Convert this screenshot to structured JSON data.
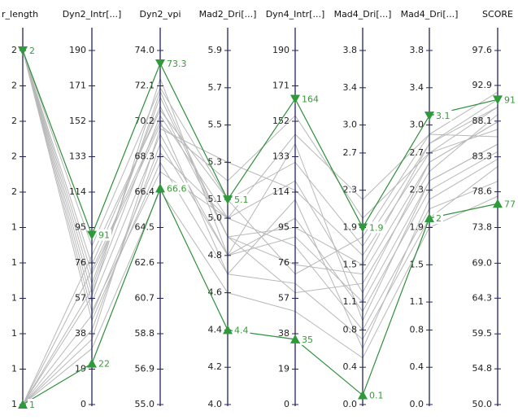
{
  "chart_data": {
    "type": "parallel",
    "axes": [
      {
        "name": "r_length",
        "lim": [
          1,
          2
        ],
        "ticks": [
          {
            "value": 1.0,
            "label": "1"
          },
          {
            "value": 1.1,
            "label": "1"
          },
          {
            "value": 1.2,
            "label": "1"
          },
          {
            "value": 1.3,
            "label": "1"
          },
          {
            "value": 1.4,
            "label": "1"
          },
          {
            "value": 1.5,
            "label": "1"
          },
          {
            "value": 1.6,
            "label": "2"
          },
          {
            "value": 1.7,
            "label": "2"
          },
          {
            "value": 1.8,
            "label": "2"
          },
          {
            "value": 1.9,
            "label": "2"
          },
          {
            "value": 2.0,
            "label": "2"
          }
        ]
      },
      {
        "name": "Dyn2_Intr[...]",
        "lim": [
          0,
          190
        ],
        "ticks": [
          0,
          19,
          38,
          57,
          76,
          95,
          114,
          133,
          152,
          171,
          190
        ]
      },
      {
        "name": "Dyn2_vpi",
        "lim": [
          55,
          74
        ],
        "ticks": [
          {
            "value": 55,
            "label": "55.0"
          },
          56.9,
          58.8,
          60.7,
          62.6,
          64.5,
          66.4,
          68.3,
          70.2,
          72.1,
          {
            "value": 74,
            "label": "74.0"
          }
        ]
      },
      {
        "name": "Mad2_Dri[...]",
        "lim": [
          4,
          5.9
        ],
        "ticks": [
          {
            "value": 4,
            "label": "4.0"
          },
          4.2,
          4.4,
          4.6,
          4.8,
          {
            "value": 5,
            "label": "5.0"
          },
          5.1,
          5.3,
          5.5,
          5.7,
          5.9
        ]
      },
      {
        "name": "Dyn4_Intr[...]",
        "lim": [
          0,
          190
        ],
        "ticks": [
          0,
          19,
          38,
          57,
          76,
          95,
          114,
          133,
          152,
          171,
          190
        ]
      },
      {
        "name": "Mad4_Dri[...]",
        "lim": [
          0,
          3.8
        ],
        "ticks": [
          {
            "value": 0,
            "label": "0.0"
          },
          0.4,
          0.8,
          1.1,
          1.5,
          1.9,
          2.3,
          2.7,
          {
            "value": 3,
            "label": "3.0"
          },
          3.4,
          3.8
        ]
      },
      {
        "name": "Mad4_Dri[...]",
        "lim": [
          0,
          3.8
        ],
        "ticks": [
          {
            "value": 0,
            "label": "0.0"
          },
          0.4,
          0.8,
          1.1,
          1.5,
          1.9,
          2.3,
          2.7,
          {
            "value": 3,
            "label": "3.0"
          },
          3.4,
          3.8
        ]
      },
      {
        "name": "SCORE",
        "lim": [
          50,
          97.6
        ],
        "ticks": [
          {
            "value": 50,
            "label": "50.0"
          },
          54.8,
          59.5,
          64.3,
          {
            "value": 69,
            "label": "69.0"
          },
          73.8,
          78.6,
          83.3,
          88.1,
          92.9,
          97.6
        ]
      }
    ],
    "rows": [
      [
        2,
        60,
        70.5,
        5.0,
        120,
        1.2,
        2.6,
        88
      ],
      [
        2,
        75,
        71.0,
        4.9,
        95,
        1.5,
        2.8,
        90
      ],
      [
        2,
        55,
        69.5,
        4.8,
        140,
        0.9,
        2.4,
        85
      ],
      [
        2,
        85,
        72.0,
        5.1,
        70,
        1.8,
        2.9,
        92
      ],
      [
        2,
        45,
        68.0,
        4.7,
        110,
        0.6,
        2.2,
        83
      ],
      [
        2,
        70,
        70.0,
        5.2,
        155,
        2.0,
        2.7,
        87
      ],
      [
        2,
        65,
        71.5,
        4.9,
        60,
        1.3,
        2.5,
        89
      ],
      [
        2,
        50,
        67.5,
        5.0,
        85,
        0.8,
        2.1,
        80
      ],
      [
        1,
        40,
        69.0,
        4.8,
        100,
        1.0,
        2.3,
        84
      ],
      [
        1,
        80,
        70.8,
        5.1,
        130,
        1.7,
        2.8,
        91
      ],
      [
        1,
        30,
        66.5,
        4.6,
        50,
        0.5,
        1.9,
        78
      ],
      [
        1,
        62,
        71.8,
        4.9,
        75,
        1.4,
        2.6,
        88
      ],
      [
        1,
        48,
        68.5,
        5.0,
        145,
        2.2,
        2.9,
        86
      ],
      [
        1,
        72,
        70.2,
        4.7,
        65,
        0.7,
        2.0,
        82
      ],
      [
        1,
        35,
        69.8,
        5.3,
        115,
        1.6,
        2.7,
        90
      ],
      [
        1,
        58,
        72.5,
        4.8,
        90,
        1.1,
        2.4,
        85
      ]
    ],
    "highlight": [
      {
        "values": [
          2,
          91,
          73.3,
          5.1,
          164,
          1.9,
          3.1,
          91
        ]
      },
      {
        "values": [
          1,
          22,
          66.6,
          4.4,
          35,
          0.1,
          2.0,
          77
        ]
      }
    ]
  }
}
